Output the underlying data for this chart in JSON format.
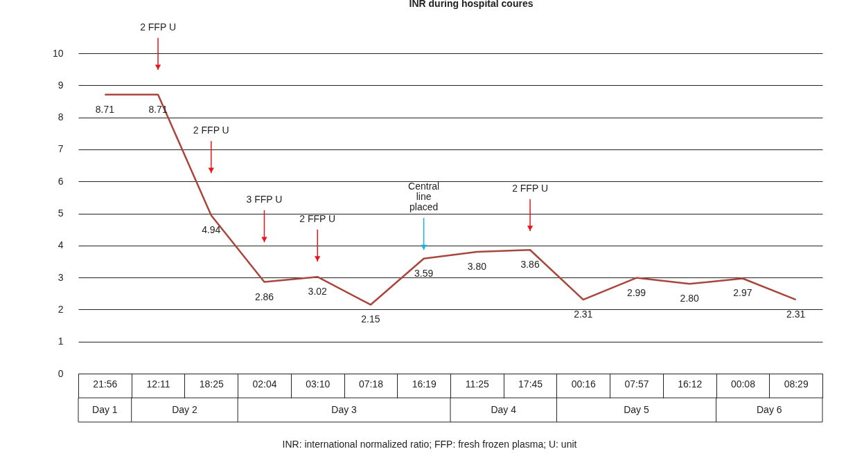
{
  "chart_data": {
    "type": "line",
    "title": "INR during hospital coures",
    "categories": [
      "21:56",
      "12:11",
      "18:25",
      "02:04",
      "03:10",
      "07:18",
      "16:19",
      "11:25",
      "17:45",
      "00:16",
      "07:57",
      "16:12",
      "00:08",
      "08:29"
    ],
    "series": [
      {
        "color": "#a9453a",
        "values": [
          8.71,
          8.71,
          4.94,
          2.86,
          3.02,
          2.15,
          3.59,
          3.8,
          3.86,
          2.31,
          2.99,
          2.8,
          2.97,
          2.31
        ],
        "value_labels": [
          "8.71",
          "8.71",
          "4.94",
          "2.86",
          "3.02",
          "2.15",
          "3.59",
          "3.80",
          "3.86",
          "2.31",
          "2.99",
          "2.80",
          "2.97",
          "2.31"
        ]
      }
    ],
    "ylim": [
      0,
      10
    ],
    "yticks": [
      0,
      1,
      2,
      3,
      4,
      5,
      6,
      7,
      8,
      9,
      10
    ],
    "grid": "y",
    "marker": "none",
    "line_style": "solid",
    "annotations": [
      "2 FFP U",
      "2 FFP U",
      "3 FFP U",
      "2 FFP U",
      "Central\nline\nplaced",
      "2 FFP U",
      "Day 1",
      "Day 2",
      "Day 3",
      "Day 4",
      "Day 5",
      "Day 6",
      "INR: international normalized ratio; FFP: fresh frozen plasma; U: unit"
    ]
  }
}
